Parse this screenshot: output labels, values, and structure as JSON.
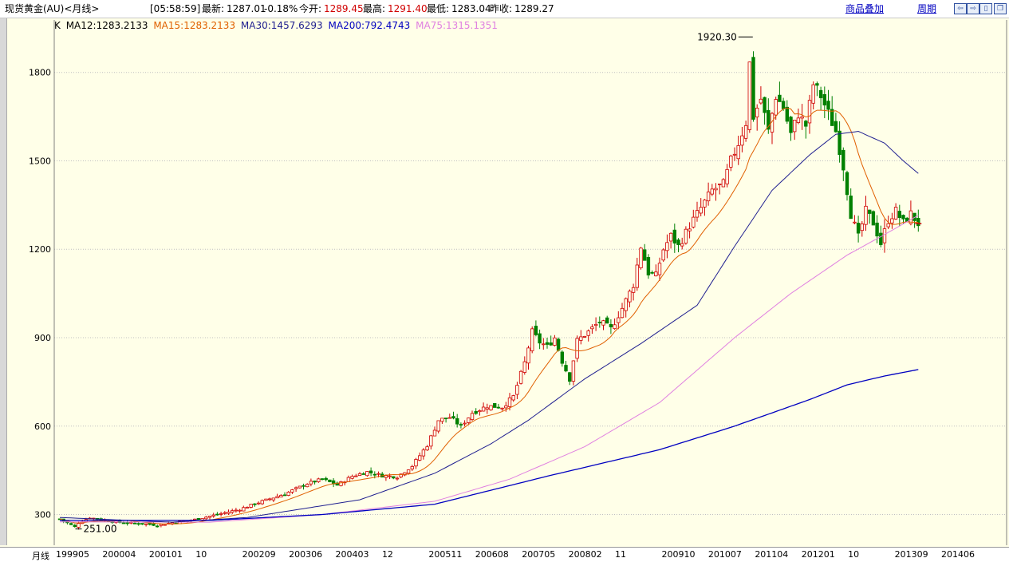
{
  "toolbar": {
    "title": "现货黄金(AU)<月线>",
    "time": "[05:58:59]",
    "latest_label": "最新:",
    "latest_value": "1287.01",
    "change": "-0.18%",
    "open_label": "今开:",
    "open_value": "1289.45",
    "high_label": "最高:",
    "high_value": "1291.40",
    "low_label": "最低:",
    "low_value": "1283.04",
    "prev_label": "昨收:",
    "prev_value": "1289.27",
    "overlay_link": "商品叠加",
    "period_link": "周期",
    "window_buttons": [
      "⇦",
      "⇨",
      "▯",
      "❐"
    ]
  },
  "legend": {
    "prefix": "K",
    "ma12": "MA12:1283.2133",
    "ma15": "MA15:1283.2133",
    "ma30": "MA30:1457.6293",
    "ma200": "MA200:792.4743",
    "ma75": "MA75:1315.1351"
  },
  "colors": {
    "up": "#d00000",
    "down": "#008000",
    "ma12": "#e06000",
    "ma15": "#e06000",
    "ma30": "#202090",
    "ma200": "#0000c0",
    "ma75": "#e080e0",
    "grid": "#c0c0c0"
  },
  "bottom": {
    "period_label": "月线",
    "x_ticks": [
      "199905",
      "200004",
      "200101",
      "10",
      "200209",
      "200306",
      "200403",
      "12",
      "200511",
      "200608",
      "200705",
      "200802",
      "11",
      "200910",
      "201007",
      "201104",
      "201201",
      "10",
      "201309",
      "201406"
    ]
  },
  "chart_data": {
    "type": "candlestick",
    "ylim": [
      250,
      1940
    ],
    "y_ticks": [
      300,
      600,
      900,
      1200,
      1500,
      1800
    ],
    "max_label": "1920.30",
    "min_label": "251.00",
    "close_anchors": [
      {
        "i": 0,
        "v": 285
      },
      {
        "i": 4,
        "v": 258
      },
      {
        "i": 5,
        "v": 272
      },
      {
        "i": 8,
        "v": 290
      },
      {
        "i": 11,
        "v": 282
      },
      {
        "i": 17,
        "v": 272
      },
      {
        "i": 23,
        "v": 268
      },
      {
        "i": 26,
        "v": 264
      },
      {
        "i": 30,
        "v": 272
      },
      {
        "i": 36,
        "v": 283
      },
      {
        "i": 42,
        "v": 300
      },
      {
        "i": 48,
        "v": 318
      },
      {
        "i": 54,
        "v": 345
      },
      {
        "i": 60,
        "v": 370
      },
      {
        "i": 66,
        "v": 405
      },
      {
        "i": 70,
        "v": 420
      },
      {
        "i": 74,
        "v": 400
      },
      {
        "i": 78,
        "v": 430
      },
      {
        "i": 82,
        "v": 445
      },
      {
        "i": 86,
        "v": 432
      },
      {
        "i": 90,
        "v": 428
      },
      {
        "i": 94,
        "v": 465
      },
      {
        "i": 98,
        "v": 535
      },
      {
        "i": 101,
        "v": 620
      },
      {
        "i": 104,
        "v": 630
      },
      {
        "i": 107,
        "v": 600
      },
      {
        "i": 110,
        "v": 645
      },
      {
        "i": 114,
        "v": 668
      },
      {
        "i": 118,
        "v": 665
      },
      {
        "i": 121,
        "v": 700
      },
      {
        "i": 124,
        "v": 815
      },
      {
        "i": 126,
        "v": 920
      },
      {
        "i": 128,
        "v": 885
      },
      {
        "i": 130,
        "v": 870
      },
      {
        "i": 132,
        "v": 900
      },
      {
        "i": 134,
        "v": 820
      },
      {
        "i": 136,
        "v": 760
      },
      {
        "i": 138,
        "v": 890
      },
      {
        "i": 141,
        "v": 920
      },
      {
        "i": 144,
        "v": 955
      },
      {
        "i": 147,
        "v": 930
      },
      {
        "i": 150,
        "v": 1000
      },
      {
        "i": 153,
        "v": 1080
      },
      {
        "i": 155,
        "v": 1210
      },
      {
        "i": 157,
        "v": 1120
      },
      {
        "i": 159,
        "v": 1110
      },
      {
        "i": 161,
        "v": 1200
      },
      {
        "i": 163,
        "v": 1245
      },
      {
        "i": 165,
        "v": 1210
      },
      {
        "i": 168,
        "v": 1280
      },
      {
        "i": 171,
        "v": 1340
      },
      {
        "i": 174,
        "v": 1400
      },
      {
        "i": 177,
        "v": 1420
      },
      {
        "i": 179,
        "v": 1500
      },
      {
        "i": 181,
        "v": 1560
      },
      {
        "i": 183,
        "v": 1630
      },
      {
        "i": 184,
        "v": 1830
      },
      {
        "i": 185,
        "v": 1650
      },
      {
        "i": 187,
        "v": 1710
      },
      {
        "i": 189,
        "v": 1600
      },
      {
        "i": 191,
        "v": 1720
      },
      {
        "i": 193,
        "v": 1680
      },
      {
        "i": 195,
        "v": 1590
      },
      {
        "i": 197,
        "v": 1660
      },
      {
        "i": 199,
        "v": 1620
      },
      {
        "i": 201,
        "v": 1760
      },
      {
        "i": 203,
        "v": 1720
      },
      {
        "i": 205,
        "v": 1660
      },
      {
        "i": 207,
        "v": 1600
      },
      {
        "i": 209,
        "v": 1480
      },
      {
        "i": 211,
        "v": 1320
      },
      {
        "i": 213,
        "v": 1240
      },
      {
        "i": 215,
        "v": 1330
      },
      {
        "i": 217,
        "v": 1290
      },
      {
        "i": 219,
        "v": 1220
      },
      {
        "i": 221,
        "v": 1300
      },
      {
        "i": 223,
        "v": 1330
      },
      {
        "i": 225,
        "v": 1290
      },
      {
        "i": 227,
        "v": 1320
      },
      {
        "i": 229,
        "v": 1287
      }
    ],
    "ma30_points": [
      {
        "i": 0,
        "v": 290
      },
      {
        "i": 30,
        "v": 274
      },
      {
        "i": 50,
        "v": 290
      },
      {
        "i": 80,
        "v": 350
      },
      {
        "i": 100,
        "v": 440
      },
      {
        "i": 115,
        "v": 540
      },
      {
        "i": 125,
        "v": 620
      },
      {
        "i": 140,
        "v": 760
      },
      {
        "i": 155,
        "v": 880
      },
      {
        "i": 170,
        "v": 1010
      },
      {
        "i": 180,
        "v": 1210
      },
      {
        "i": 190,
        "v": 1400
      },
      {
        "i": 200,
        "v": 1520
      },
      {
        "i": 207,
        "v": 1590
      },
      {
        "i": 213,
        "v": 1600
      },
      {
        "i": 220,
        "v": 1560
      },
      {
        "i": 225,
        "v": 1500
      },
      {
        "i": 229,
        "v": 1457
      }
    ],
    "ma75_points": [
      {
        "i": 0,
        "v": 275
      },
      {
        "i": 40,
        "v": 274
      },
      {
        "i": 70,
        "v": 300
      },
      {
        "i": 100,
        "v": 345
      },
      {
        "i": 120,
        "v": 420
      },
      {
        "i": 140,
        "v": 530
      },
      {
        "i": 160,
        "v": 680
      },
      {
        "i": 180,
        "v": 900
      },
      {
        "i": 195,
        "v": 1050
      },
      {
        "i": 210,
        "v": 1180
      },
      {
        "i": 220,
        "v": 1250
      },
      {
        "i": 229,
        "v": 1315
      }
    ],
    "ma200_points": [
      {
        "i": 0,
        "v": 280
      },
      {
        "i": 40,
        "v": 280
      },
      {
        "i": 70,
        "v": 300
      },
      {
        "i": 100,
        "v": 335
      },
      {
        "i": 130,
        "v": 430
      },
      {
        "i": 160,
        "v": 520
      },
      {
        "i": 180,
        "v": 600
      },
      {
        "i": 200,
        "v": 690
      },
      {
        "i": 210,
        "v": 740
      },
      {
        "i": 220,
        "v": 770
      },
      {
        "i": 229,
        "v": 792
      }
    ]
  }
}
